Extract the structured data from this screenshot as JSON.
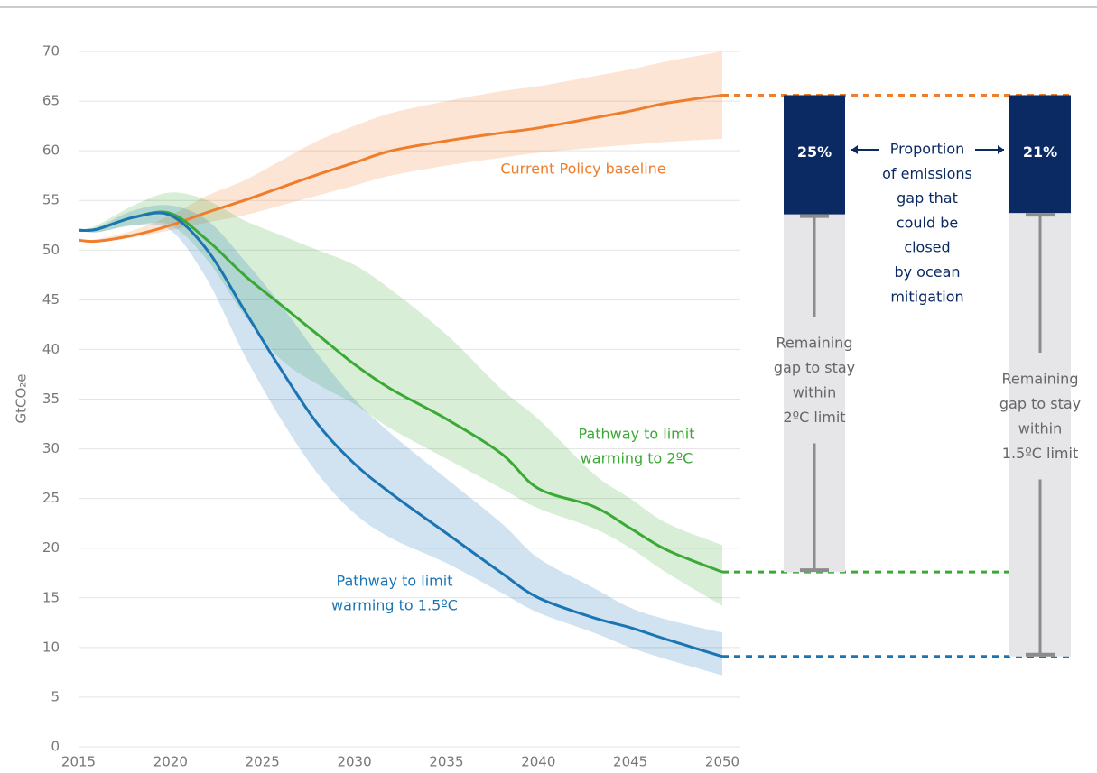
{
  "chart_data": {
    "type": "line",
    "y_label": "GtCO₂e",
    "x": [
      2015,
      2016,
      2018,
      2020,
      2022,
      2024,
      2026,
      2028,
      2030,
      2032,
      2035,
      2038,
      2040,
      2043,
      2045,
      2047,
      2050
    ],
    "xlim": [
      2015,
      2050
    ],
    "xticks": [
      2015,
      2020,
      2025,
      2030,
      2035,
      2040,
      2045,
      2050
    ],
    "ylim": [
      0,
      70
    ],
    "yticks": [
      0,
      5,
      10,
      15,
      20,
      25,
      30,
      35,
      40,
      45,
      50,
      55,
      60,
      65,
      70
    ],
    "grid": true,
    "series": [
      {
        "name": [
          "Current Policy baseline"
        ],
        "color": "#f07d2b",
        "values": [
          51,
          50.9,
          51.5,
          52.5,
          53.8,
          55,
          56.3,
          57.6,
          58.8,
          60,
          61,
          61.8,
          62.3,
          63.3,
          64,
          64.8,
          65.6
        ],
        "lower": [
          51,
          50.8,
          51.3,
          52,
          52.8,
          53.5,
          54.5,
          55.5,
          56.5,
          57.5,
          58.5,
          59.3,
          59.8,
          60.3,
          60.6,
          60.9,
          61.2
        ],
        "upper": [
          51,
          51.1,
          52,
          53.5,
          55.5,
          57,
          59,
          61,
          62.5,
          63.8,
          65,
          66,
          66.5,
          67.5,
          68.2,
          69,
          70
        ]
      },
      {
        "name": [
          "Pathway to limit",
          "warming to 2ºC"
        ],
        "color": "#3aa935",
        "values": [
          52,
          52.1,
          53.3,
          53.7,
          51,
          47.5,
          44.5,
          41.5,
          38.5,
          36,
          33,
          29.5,
          26,
          24.2,
          22,
          19.8,
          17.6
        ],
        "lower": [
          52,
          51.8,
          52.5,
          52.5,
          49,
          43.5,
          39,
          36.5,
          34.5,
          32,
          29,
          26,
          24,
          22,
          20,
          17.5,
          14.2
        ],
        "upper": [
          52,
          52.5,
          54.5,
          55.8,
          55,
          53,
          51.5,
          50,
          48.5,
          46,
          41.5,
          36,
          33,
          27.5,
          25,
          22.5,
          20.3
        ]
      },
      {
        "name": [
          "Pathway to limit",
          "warming to 1.5ºC"
        ],
        "color": "#1a75b4",
        "values": [
          52,
          52.1,
          53.3,
          53.5,
          50,
          44,
          38,
          32.5,
          28.5,
          25.5,
          21.5,
          17.5,
          15,
          13,
          12,
          10.8,
          9.1
        ],
        "lower": [
          52,
          51.8,
          52.5,
          52,
          47,
          39.5,
          33,
          27.5,
          23.5,
          21,
          18.5,
          15.5,
          13.5,
          11.5,
          10,
          8.8,
          7.2
        ],
        "upper": [
          52,
          52.3,
          54,
          54.5,
          53,
          49,
          44.5,
          39.5,
          35,
          31.5,
          27,
          22.5,
          19,
          16,
          14,
          12.8,
          11.5
        ]
      }
    ],
    "gap_bars": {
      "values": [
        25,
        21
      ],
      "value_labels": [
        "25%",
        "21%"
      ],
      "color": "#0b2a63",
      "notes": [
        [
          "Remaining",
          "gap to stay",
          "within",
          "2ºC limit"
        ],
        [
          "Remaining",
          "gap to stay",
          "within",
          "1.5ºC limit"
        ]
      ]
    },
    "annotation": [
      "Proportion",
      "of emissions",
      "gap that",
      "could be",
      "closed",
      "by ocean",
      "mitigation"
    ]
  }
}
